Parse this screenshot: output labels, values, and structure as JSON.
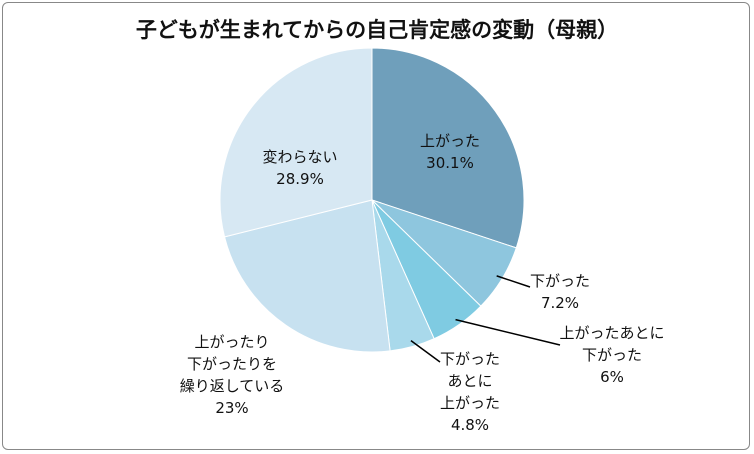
{
  "chart_data": {
    "type": "pie",
    "title": "子どもが生まれてからの自己肯定感の変動（母親）",
    "categories": [
      "上がった",
      "下がった",
      "上がったあとに\n下がった",
      "下がった\nあとに\n上がった",
      "上がったり\n下がったりを\n繰り返している",
      "変わらない"
    ],
    "values": [
      30.1,
      7.2,
      6,
      4.8,
      23,
      28.9
    ],
    "value_labels": [
      "30.1%",
      "7.2%",
      "6%",
      "4.8%",
      "23%",
      "28.9%"
    ],
    "colors": [
      "#6f9fbb",
      "#8ec6de",
      "#7fcbe2",
      "#a9d9eb",
      "#c7e1f0",
      "#d7e8f3"
    ]
  }
}
